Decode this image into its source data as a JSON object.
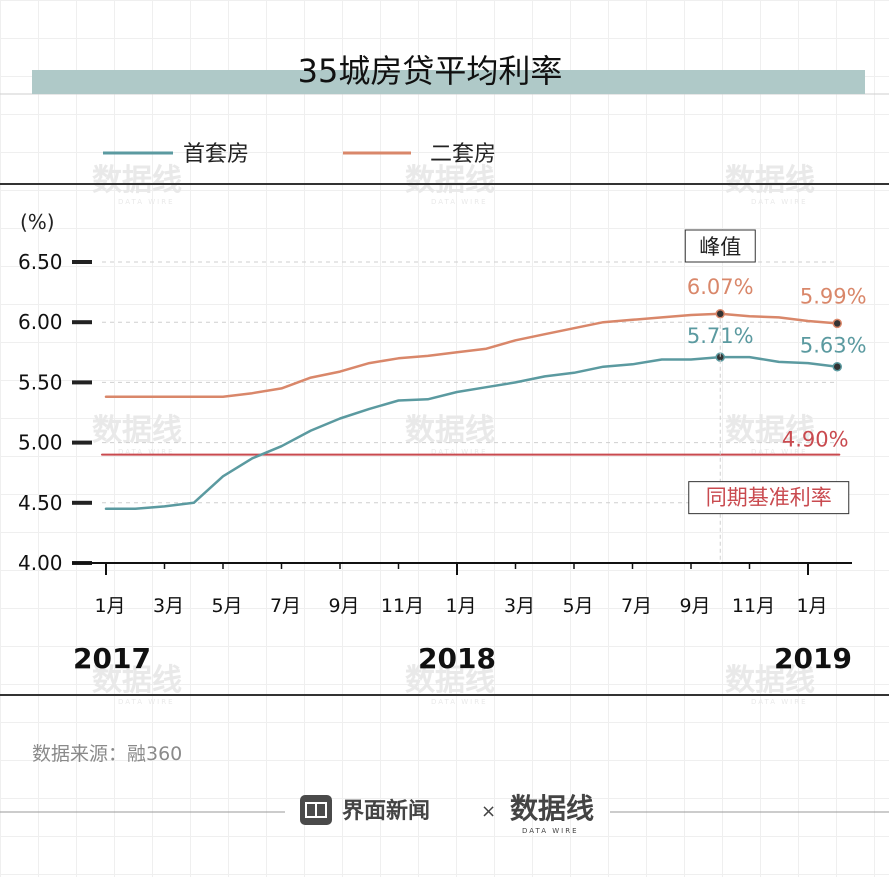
{
  "chart_data": {
    "type": "line",
    "title": "35城房贷平均利率",
    "ylabel": "(%)",
    "ylim": [
      4.0,
      6.5
    ],
    "yticks": [
      "6.50",
      "6.00",
      "5.50",
      "5.00",
      "4.50",
      "4.00"
    ],
    "x_ticks": [
      "1月",
      "3月",
      "5月",
      "7月",
      "9月",
      "11月",
      "1月",
      "3月",
      "5月",
      "7月",
      "9月",
      "11月",
      "1月"
    ],
    "years": [
      "2017",
      "2018",
      "2019"
    ],
    "months": [
      "2017-01",
      "2017-02",
      "2017-03",
      "2017-04",
      "2017-05",
      "2017-06",
      "2017-07",
      "2017-08",
      "2017-09",
      "2017-10",
      "2017-11",
      "2017-12",
      "2018-01",
      "2018-02",
      "2018-03",
      "2018-04",
      "2018-05",
      "2018-06",
      "2018-07",
      "2018-08",
      "2018-09",
      "2018-10",
      "2018-11",
      "2018-12",
      "2019-01",
      "2019-02"
    ],
    "series": [
      {
        "name": "首套房",
        "color": "#5b9aa0",
        "values": [
          4.45,
          4.45,
          4.47,
          4.5,
          4.72,
          4.87,
          4.97,
          5.1,
          5.2,
          5.28,
          5.35,
          5.36,
          5.42,
          5.46,
          5.5,
          5.55,
          5.58,
          5.63,
          5.65,
          5.69,
          5.69,
          5.71,
          5.71,
          5.67,
          5.66,
          5.63
        ]
      },
      {
        "name": "二套房",
        "color": "#d9876a",
        "values": [
          5.38,
          5.38,
          5.38,
          5.38,
          5.38,
          5.41,
          5.45,
          5.54,
          5.59,
          5.66,
          5.7,
          5.72,
          5.75,
          5.78,
          5.85,
          5.9,
          5.95,
          6.0,
          6.02,
          6.04,
          6.06,
          6.07,
          6.05,
          6.04,
          6.01,
          5.99
        ]
      },
      {
        "name": "同期基准利率",
        "color": "#c94a4f",
        "values": [
          4.9,
          4.9,
          4.9,
          4.9,
          4.9,
          4.9,
          4.9,
          4.9,
          4.9,
          4.9,
          4.9,
          4.9,
          4.9,
          4.9,
          4.9,
          4.9,
          4.9,
          4.9,
          4.9,
          4.9,
          4.9,
          4.9,
          4.9,
          4.9,
          4.9,
          4.9
        ]
      }
    ],
    "data_labels": [
      {
        "text": "6.07%",
        "series": 1,
        "index": 21
      },
      {
        "text": "5.99%",
        "series": 1,
        "index": 25
      },
      {
        "text": "5.71%",
        "series": 0,
        "index": 21
      },
      {
        "text": "5.63%",
        "series": 0,
        "index": 25
      },
      {
        "text": "4.90%",
        "series": 2,
        "index": 25
      }
    ],
    "annotations": {
      "peak": "峰值",
      "benchmark": "同期基准利率"
    },
    "legend": {
      "position": "top",
      "entries": [
        "首套房",
        "二套房"
      ]
    },
    "grid": true
  },
  "footer": {
    "source": "数据来源：融360",
    "brand": "界面新闻",
    "times": "×",
    "watermark": "数据线",
    "watermark_sub": "DATA WIRE"
  },
  "colors": {
    "title_band": "#afc9c8",
    "first_home": "#5b9aa0",
    "second_home": "#d9876a",
    "benchmark": "#c94a4f"
  }
}
